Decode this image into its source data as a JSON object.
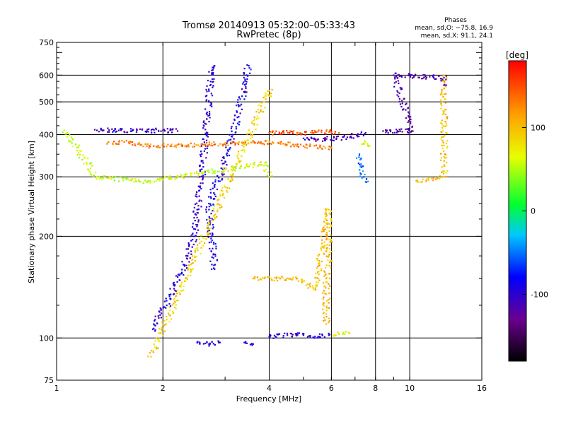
{
  "chart_data": {
    "type": "scatter",
    "title": "Tromsø 20140913 05:32:00–05:33:43",
    "subtitle": "RwPretec (8p)",
    "xlabel": "Frequency [MHz]",
    "ylabel": "Stationary phase Virtual Height [km]",
    "x_scale": "log",
    "y_scale": "log",
    "xlim": [
      1,
      16
    ],
    "ylim": [
      75,
      750
    ],
    "x_ticks": [
      1,
      2,
      4,
      6,
      8,
      10,
      16
    ],
    "y_ticks": [
      75,
      100,
      200,
      300,
      400,
      500,
      600,
      750
    ],
    "x_gridlines": [
      2,
      4,
      6,
      8,
      10
    ],
    "y_gridlines": [
      100,
      200,
      300,
      400,
      500,
      600
    ],
    "grid": true,
    "colorbar": {
      "label": "[deg]",
      "range": [
        -180,
        180
      ],
      "ticks": [
        100,
        0,
        -100
      ],
      "colormap": "rainbow"
    },
    "phase_stats": {
      "heading": "Phases",
      "o_line": "mean, sd,O: −75.8, 16.9",
      "x_line": "mean, sd,X:  91.1, 24.1"
    },
    "series": [
      {
        "description_note": "phase-coloured echo traces",
        "traces": [
          {
            "phase": -100,
            "points": [
              [
                1.9,
                105
              ],
              [
                1.95,
                120
              ],
              [
                2.05,
                125
              ],
              [
                2.15,
                140
              ],
              [
                2.25,
                155
              ],
              [
                2.35,
                175
              ],
              [
                2.45,
                200
              ],
              [
                2.5,
                240
              ],
              [
                2.55,
                280
              ],
              [
                2.6,
                330
              ],
              [
                2.62,
                380
              ],
              [
                2.65,
                430
              ],
              [
                2.7,
                500
              ],
              [
                2.72,
                560
              ],
              [
                2.75,
                620
              ],
              [
                2.8,
                640
              ]
            ]
          },
          {
            "phase": -90,
            "points": [
              [
                2.8,
                160
              ],
              [
                2.75,
                200
              ],
              [
                2.7,
                240
              ],
              [
                2.8,
                280
              ],
              [
                2.95,
                310
              ],
              [
                3.05,
                360
              ],
              [
                3.15,
                400
              ],
              [
                3.25,
                450
              ],
              [
                3.35,
                520
              ],
              [
                3.45,
                600
              ],
              [
                3.5,
                640
              ]
            ]
          },
          {
            "phase": -100,
            "points": [
              [
                2.5,
                97
              ],
              [
                2.7,
                96
              ],
              [
                2.9,
                97
              ]
            ]
          },
          {
            "phase": -95,
            "points": [
              [
                3.4,
                97
              ],
              [
                3.6,
                96
              ]
            ]
          },
          {
            "phase": -100,
            "points": [
              [
                4.0,
                101
              ],
              [
                4.5,
                102
              ],
              [
                5.0,
                102
              ],
              [
                5.5,
                101
              ],
              [
                5.9,
                102
              ]
            ]
          },
          {
            "phase": 70,
            "points": [
              [
                6.1,
                102
              ],
              [
                6.3,
                103
              ],
              [
                6.5,
                103
              ],
              [
                6.7,
                104
              ]
            ]
          },
          {
            "phase": -110,
            "points": [
              [
                1.3,
                412
              ],
              [
                1.5,
                412
              ],
              [
                1.8,
                410
              ],
              [
                2.0,
                412
              ],
              [
                2.2,
                410
              ]
            ]
          },
          {
            "phase": 150,
            "points": [
              [
                4.0,
                405
              ],
              [
                4.4,
                405
              ],
              [
                4.8,
                405
              ],
              [
                5.3,
                405
              ],
              [
                6.0,
                408
              ],
              [
                6.3,
                405
              ]
            ]
          },
          {
            "phase": -110,
            "points": [
              [
                5.0,
                390
              ],
              [
                5.5,
                388
              ],
              [
                6.2,
                390
              ],
              [
                6.8,
                395
              ],
              [
                7.5,
                405
              ]
            ]
          },
          {
            "phase": 130,
            "points": [
              [
                1.4,
                380
              ],
              [
                1.6,
                380
              ],
              [
                1.8,
                370
              ],
              [
                4.3,
                380
              ],
              [
                4.8,
                370
              ],
              [
                5.2,
                370
              ],
              [
                6.0,
                365
              ]
            ]
          },
          {
            "phase": -60,
            "points": [
              [
                7.2,
                350
              ],
              [
                7.3,
                320
              ],
              [
                7.4,
                300
              ],
              [
                7.5,
                290
              ]
            ]
          },
          {
            "phase": 60,
            "points": [
              [
                7.3,
                375
              ],
              [
                7.5,
                380
              ],
              [
                7.7,
                370
              ]
            ]
          },
          {
            "phase": 100,
            "points": [
              [
                10.5,
                290
              ],
              [
                12.5,
                300
              ],
              [
                12.5,
                600
              ]
            ]
          },
          {
            "phase": -120,
            "points": [
              [
                12.5,
                560
              ],
              [
                12.5,
                590
              ],
              [
                9.0,
                600
              ],
              [
                10.2,
                410
              ],
              [
                8.4,
                410
              ]
            ]
          },
          {
            "phase": 100,
            "points": [
              [
                5.8,
                110
              ],
              [
                5.8,
                150
              ],
              [
                5.9,
                175
              ],
              [
                5.9,
                240
              ],
              [
                5.4,
                140
              ],
              [
                4.8,
                150
              ],
              [
                3.6,
                150
              ]
            ]
          },
          {
            "phase": 90,
            "points": [
              [
                1.85,
                88
              ],
              [
                4.0,
                540
              ],
              [
                4.0,
                520
              ]
            ]
          },
          {
            "phase": 60,
            "points": [
              [
                1.05,
                412
              ],
              [
                1.3,
                300
              ],
              [
                1.8,
                290
              ],
              [
                3.9,
                330
              ],
              [
                4.0,
                300
              ]
            ]
          }
        ]
      }
    ]
  }
}
